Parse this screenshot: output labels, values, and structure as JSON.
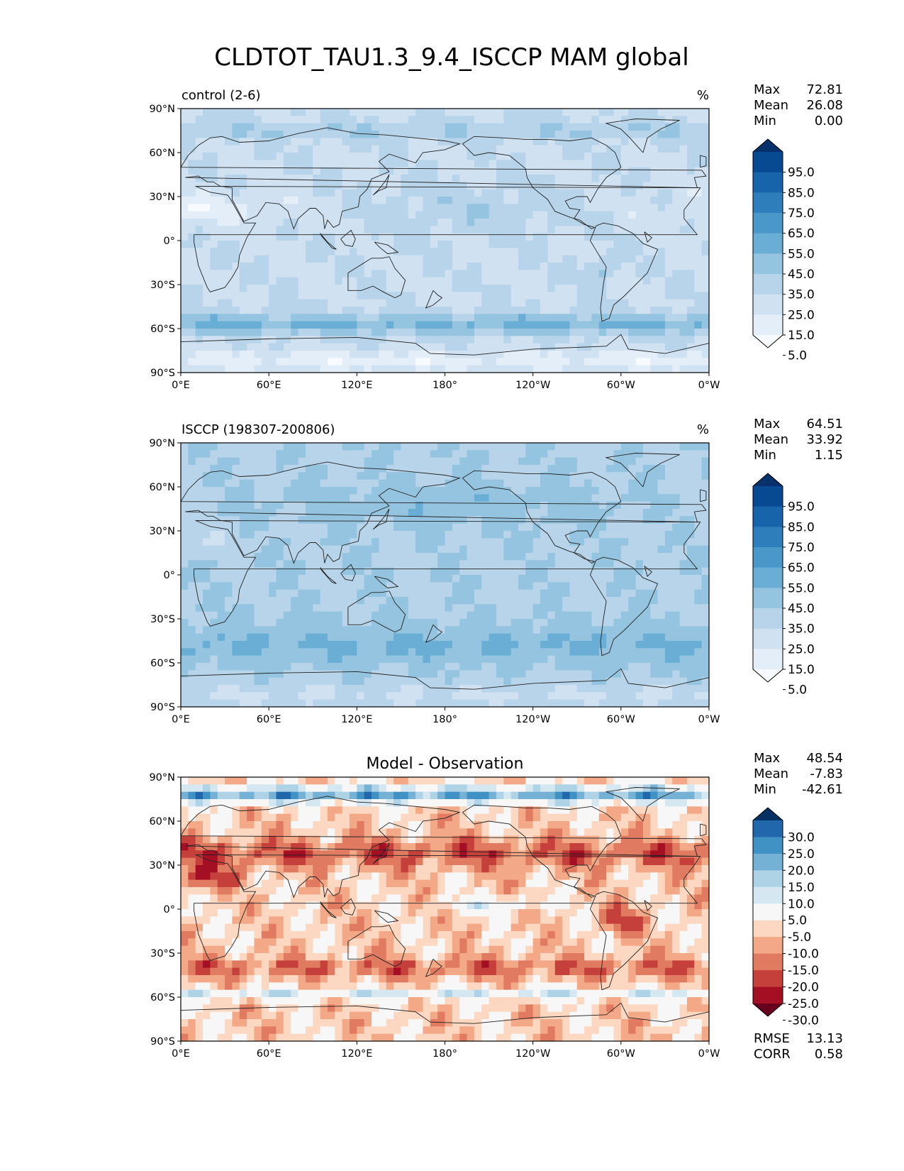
{
  "figure": {
    "title": "CLDTOT_TAU1.3_9.4_ISCCP MAM global"
  },
  "axes": {
    "lat_ticks": [
      "90°N",
      "60°N",
      "30°N",
      "0°",
      "30°S",
      "60°S",
      "90°S"
    ],
    "lon_ticks": [
      "0°E",
      "60°E",
      "120°E",
      "180°",
      "120°W",
      "60°W",
      "0°W"
    ]
  },
  "panels": [
    {
      "id": "control",
      "left_title": "control (2-6)",
      "center_title": "",
      "units": "%",
      "stats": [
        {
          "label": "Max",
          "value": "72.81"
        },
        {
          "label": "Mean",
          "value": "26.08"
        },
        {
          "label": "Min",
          "value": "0.00"
        }
      ],
      "colorbar_labels": [
        "95.0",
        "85.0",
        "75.0",
        "65.0",
        "55.0",
        "45.0",
        "35.0",
        "25.0",
        "15.0",
        "5.0"
      ],
      "colors": [
        "#f7fbff",
        "#e3eef9",
        "#d0e1f2",
        "#b7d4ea",
        "#94c4df",
        "#6aaed6",
        "#4a98c9",
        "#2e7ebc",
        "#1764ab",
        "#084a91",
        "#08306b"
      ],
      "extra": []
    },
    {
      "id": "isccp",
      "left_title": "ISCCP (198307-200806)",
      "center_title": "",
      "units": "%",
      "stats": [
        {
          "label": "Max",
          "value": "64.51"
        },
        {
          "label": "Mean",
          "value": "33.92"
        },
        {
          "label": "Min",
          "value": "1.15"
        }
      ],
      "colorbar_labels": [
        "95.0",
        "85.0",
        "75.0",
        "65.0",
        "55.0",
        "45.0",
        "35.0",
        "25.0",
        "15.0",
        "5.0"
      ],
      "colors": [
        "#f7fbff",
        "#e3eef9",
        "#d0e1f2",
        "#b7d4ea",
        "#94c4df",
        "#6aaed6",
        "#4a98c9",
        "#2e7ebc",
        "#1764ab",
        "#084a91",
        "#08306b"
      ],
      "extra": []
    },
    {
      "id": "diff",
      "left_title": "",
      "center_title": "Model - Observation",
      "units": "",
      "stats": [
        {
          "label": "Max",
          "value": "48.54"
        },
        {
          "label": "Mean",
          "value": "-7.83"
        },
        {
          "label": "Min",
          "value": "-42.61"
        }
      ],
      "colorbar_labels": [
        "30.0",
        "25.0",
        "20.0",
        "15.0",
        "10.0",
        "5.0",
        "-5.0",
        "-10.0",
        "-15.0",
        "-20.0",
        "-25.0",
        "-30.0"
      ],
      "colors": [
        "#67001f",
        "#a50f24",
        "#c6403b",
        "#e07b62",
        "#f3a987",
        "#fcd7c1",
        "#f7f7f7",
        "#d5e7f1",
        "#aed2e6",
        "#75b1d4",
        "#4192c4",
        "#2167ac",
        "#053061"
      ],
      "extra": [
        {
          "label": "RMSE",
          "value": "13.13"
        },
        {
          "label": "CORR",
          "value": "0.58"
        }
      ]
    }
  ]
}
